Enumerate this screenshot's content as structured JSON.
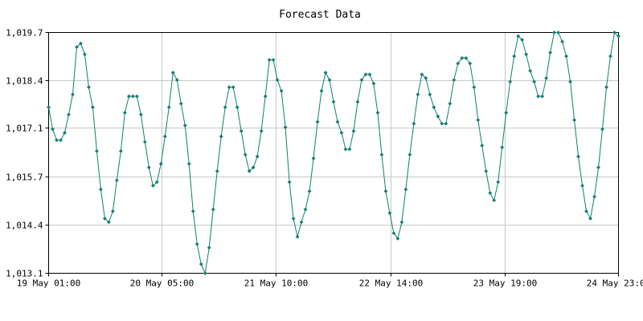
{
  "chart_data": {
    "type": "line",
    "title": "Forecast Data",
    "xlabel": "",
    "ylabel": "",
    "x_tick_labels": [
      "19 May 01:00",
      "20 May 05:00",
      "21 May 10:00",
      "22 May 14:00",
      "23 May 19:00",
      "24 May 23:00"
    ],
    "y_tick_labels": [
      "1,013.1",
      "1,014.4",
      "1,015.7",
      "1,017.1",
      "1,018.4",
      "1,019.7"
    ],
    "ylim": [
      1013.1,
      1019.7
    ],
    "grid": true,
    "series_color": "#0f7f70",
    "series": [
      {
        "values": [
          1017.65,
          1017.05,
          1016.75,
          1016.75,
          1016.95,
          1017.45,
          1018.0,
          1019.3,
          1019.4,
          1019.1,
          1018.2,
          1017.65,
          1016.45,
          1015.4,
          1014.6,
          1014.5,
          1014.8,
          1015.65,
          1016.45,
          1017.5,
          1017.95,
          1017.95,
          1017.95,
          1017.45,
          1016.7,
          1016.0,
          1015.5,
          1015.6,
          1016.1,
          1016.85,
          1017.65,
          1018.6,
          1018.4,
          1017.75,
          1017.15,
          1016.1,
          1014.8,
          1013.9,
          1013.35,
          1013.1,
          1013.8,
          1014.85,
          1015.9,
          1016.85,
          1017.65,
          1018.2,
          1018.2,
          1017.65,
          1017.0,
          1016.35,
          1015.9,
          1016.0,
          1016.3,
          1017.0,
          1017.95,
          1018.95,
          1018.95,
          1018.4,
          1018.1,
          1017.1,
          1015.6,
          1014.6,
          1014.1,
          1014.5,
          1014.85,
          1015.35,
          1016.25,
          1017.25,
          1018.1,
          1018.6,
          1018.4,
          1017.8,
          1017.25,
          1016.95,
          1016.5,
          1016.5,
          1017.0,
          1017.8,
          1018.4,
          1018.55,
          1018.55,
          1018.3,
          1017.5,
          1016.35,
          1015.35,
          1014.75,
          1014.2,
          1014.05,
          1014.5,
          1015.4,
          1016.35,
          1017.2,
          1018.0,
          1018.55,
          1018.45,
          1018.0,
          1017.65,
          1017.4,
          1017.2,
          1017.2,
          1017.75,
          1018.4,
          1018.85,
          1019.0,
          1019.0,
          1018.85,
          1018.2,
          1017.3,
          1016.6,
          1015.9,
          1015.3,
          1015.1,
          1015.6,
          1016.55,
          1017.5,
          1018.35,
          1019.05,
          1019.6,
          1019.5,
          1019.1,
          1018.65,
          1018.35,
          1017.95,
          1017.95,
          1018.45,
          1019.15,
          1019.7,
          1019.7,
          1019.45,
          1019.05,
          1018.35,
          1017.3,
          1016.3,
          1015.5,
          1014.8,
          1014.6,
          1015.2,
          1016.0,
          1017.05,
          1018.2,
          1019.05,
          1019.7,
          1019.6
        ]
      }
    ]
  }
}
